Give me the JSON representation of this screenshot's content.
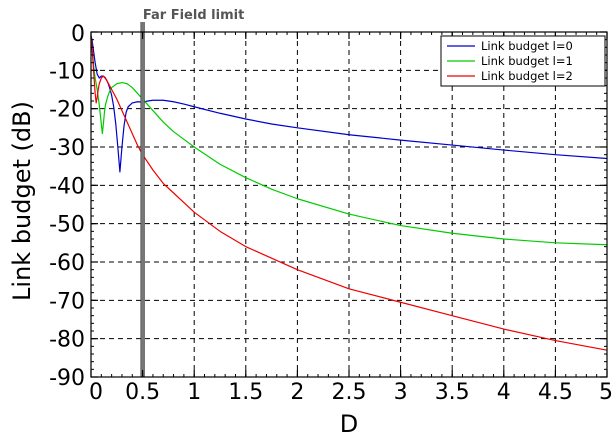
{
  "chart_data": {
    "type": "line",
    "xlabel": "D",
    "ylabel": "Link budget (dB)",
    "xlim": [
      0,
      5
    ],
    "ylim": [
      -90,
      0
    ],
    "grid": true,
    "legend_position": "top-right",
    "x_ticks": [
      0,
      0.5,
      1,
      1.5,
      2,
      2.5,
      3,
      3.5,
      4,
      4.5,
      5
    ],
    "x_tick_labels": [
      "0",
      "0.5",
      "1",
      "1.5",
      "2",
      "2.5",
      "3",
      "3.5",
      "4",
      "4.5",
      "5"
    ],
    "y_ticks": [
      0,
      -10,
      -20,
      -30,
      -40,
      -50,
      -60,
      -70,
      -80,
      -90
    ],
    "y_tick_labels": [
      "0",
      "-10",
      "-20",
      "-30",
      "-40",
      "-50",
      "-60",
      "-70",
      "-80",
      "-90"
    ],
    "annotations": [
      {
        "text": "Far Field limit",
        "x": 0.5
      }
    ],
    "series": [
      {
        "name": "Link budget l=0",
        "color": "#0000cc",
        "x": [
          0.0,
          0.01,
          0.02,
          0.04,
          0.06,
          0.08,
          0.1,
          0.12,
          0.14,
          0.16,
          0.18,
          0.2,
          0.22,
          0.24,
          0.26,
          0.28,
          0.3,
          0.32,
          0.34,
          0.36,
          0.4,
          0.45,
          0.5,
          0.55,
          0.6,
          0.7,
          0.8,
          0.9,
          1.0,
          1.25,
          1.5,
          1.75,
          2.0,
          2.5,
          3.0,
          3.5,
          4.0,
          4.5,
          5.0
        ],
        "y": [
          -1,
          -2,
          -4,
          -8,
          -11,
          -12,
          -11.5,
          -11.5,
          -12,
          -13,
          -14.5,
          -16.5,
          -19.5,
          -24,
          -30,
          -36.5,
          -30,
          -24.5,
          -21,
          -19.5,
          -18.5,
          -18.2,
          -18.3,
          -18,
          -17.8,
          -17.8,
          -18.2,
          -18.8,
          -19.5,
          -21.2,
          -22.7,
          -24,
          -25,
          -26.8,
          -28.2,
          -29.5,
          -30.8,
          -32,
          -33
        ]
      },
      {
        "name": "Link budget l=1",
        "color": "#00cc00",
        "x": [
          0.0,
          0.01,
          0.02,
          0.03,
          0.04,
          0.06,
          0.08,
          0.1,
          0.11,
          0.12,
          0.13,
          0.14,
          0.16,
          0.18,
          0.2,
          0.25,
          0.3,
          0.35,
          0.4,
          0.45,
          0.5,
          0.6,
          0.7,
          0.8,
          0.9,
          1.0,
          1.25,
          1.5,
          1.75,
          2.0,
          2.5,
          3.0,
          3.5,
          4.0,
          4.5,
          5.0
        ],
        "y": [
          -1,
          -4,
          -7,
          -10,
          -12,
          -15,
          -19,
          -24,
          -26.5,
          -24,
          -21,
          -19,
          -17,
          -15.5,
          -14.5,
          -13.5,
          -13.2,
          -13.5,
          -14.5,
          -16,
          -17.5,
          -20.5,
          -23.5,
          -26,
          -28,
          -30,
          -34.5,
          -38,
          -41,
          -43.5,
          -47.5,
          -50.5,
          -52.5,
          -54,
          -55,
          -55.5
        ]
      },
      {
        "name": "Link budget l=2",
        "color": "#ee0000",
        "x": [
          0.0,
          0.01,
          0.02,
          0.03,
          0.04,
          0.05,
          0.06,
          0.07,
          0.08,
          0.1,
          0.12,
          0.15,
          0.2,
          0.25,
          0.3,
          0.35,
          0.4,
          0.45,
          0.5,
          0.6,
          0.7,
          0.8,
          0.9,
          1.0,
          1.25,
          1.5,
          1.75,
          2.0,
          2.5,
          3.0,
          3.5,
          4.0,
          4.5,
          5.0
        ],
        "y": [
          -1,
          -4,
          -8,
          -12,
          -16,
          -18.5,
          -17,
          -15,
          -13.5,
          -12,
          -11.5,
          -12.5,
          -15,
          -17.5,
          -20.5,
          -23.5,
          -26.5,
          -29.5,
          -32,
          -36,
          -39.5,
          -42,
          -44.5,
          -47,
          -52,
          -56,
          -59,
          -62,
          -67,
          -70.5,
          -74,
          -77.5,
          -80.5,
          -83
        ]
      }
    ]
  }
}
